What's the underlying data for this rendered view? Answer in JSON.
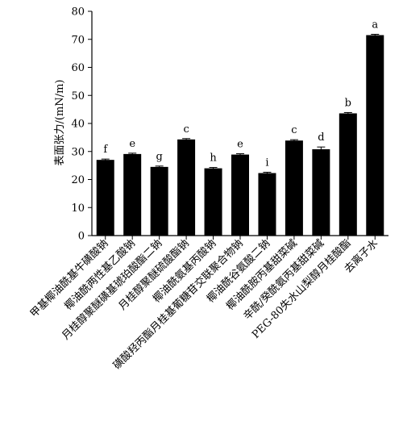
{
  "chart_data": {
    "type": "bar",
    "ylabel": "表面张力/(mN/m)",
    "ylim": [
      0,
      80
    ],
    "yticks": [
      0,
      10,
      20,
      30,
      40,
      50,
      60,
      70,
      80
    ],
    "grid": false,
    "bar_color": "#000000",
    "categories": [
      "甲基椰油酰基牛磺酸钠",
      "椰油酰两性基乙酸钠",
      "月桂醇聚醚磺基琥珀酸酯二钠",
      "月桂醇聚醚硫酸酯钠",
      "椰油酰氨基丙酸钠",
      "磺酸羟丙酯月桂基葡糖苷交联聚合物钠",
      "椰油酰谷氨酸二钠",
      "椰油酰胺丙基甜菜碱",
      "辛酰/癸酰氨丙基甜菜碱",
      "PEG-80失水山梨醇月桂酸酯",
      "去离子水"
    ],
    "values": [
      27.0,
      29.1,
      24.5,
      34.3,
      24.0,
      28.9,
      22.3,
      33.9,
      30.8,
      43.6,
      71.5
    ],
    "errors": [
      0.3,
      0.3,
      0.3,
      0.3,
      0.3,
      0.3,
      0.3,
      0.3,
      0.8,
      0.3,
      0.3
    ],
    "significance_letters": [
      "f",
      "e",
      "g",
      "c",
      "h",
      "e",
      "i",
      "c",
      "d",
      "b",
      "a"
    ]
  }
}
